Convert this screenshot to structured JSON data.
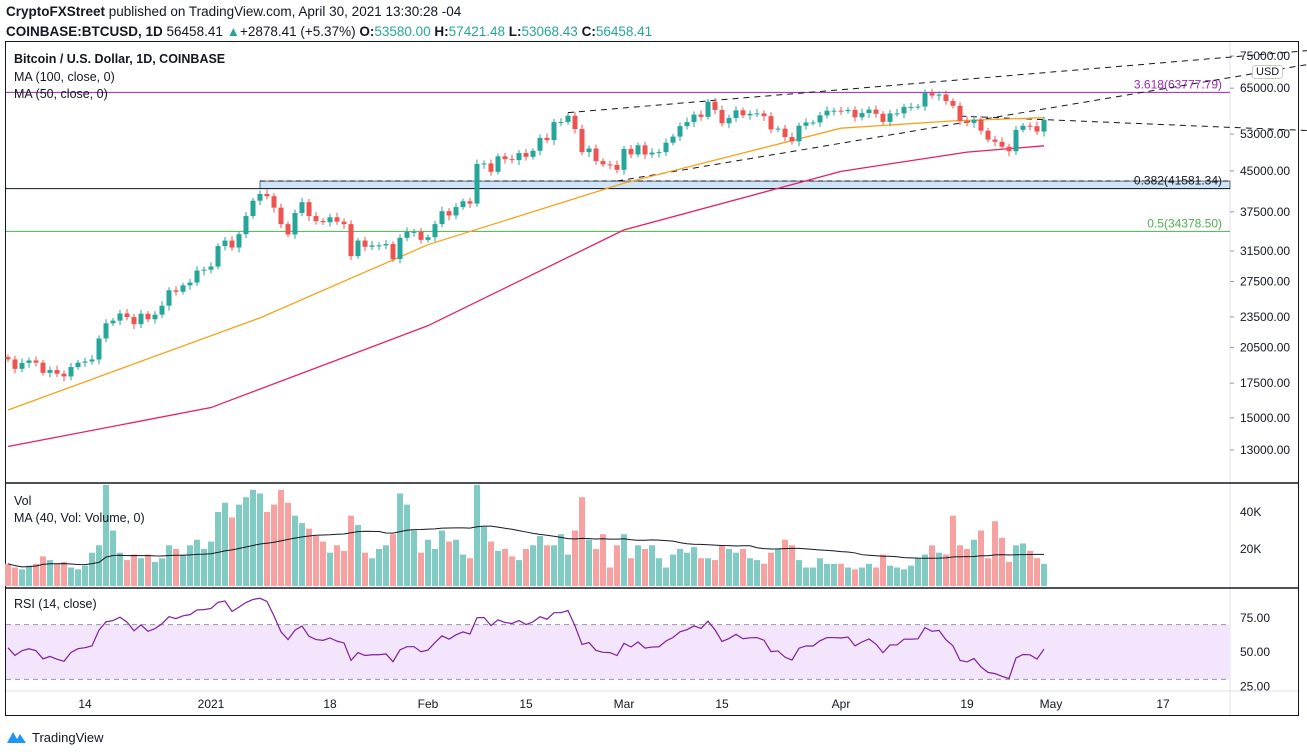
{
  "header": {
    "author": "CryptoFXStreet",
    "published": "published on TradingView.com, April 30, 2021 13:30:28 -04",
    "symbol": "COINBASE:BTCUSD, 1D",
    "last": "56458.41",
    "change": "+2878.41 (+5.37%)",
    "o_label": "O:",
    "o": "53580.00",
    "h_label": "H:",
    "h": "57421.48",
    "l_label": "L:",
    "l": "53068.43",
    "c_label": "C:",
    "c": "56458.41"
  },
  "legend": {
    "title": "Bitcoin / U.S. Dollar, 1D, COINBASE",
    "ma100": "MA (100, close, 0)",
    "ma50": "MA (50, close, 0)",
    "vol": "Vol",
    "vol_ma": "MA (40, Vol: Volume, 0)",
    "rsi": "RSI (14, close)",
    "currency": "USD"
  },
  "footer": {
    "brand": "TradingView"
  },
  "colors": {
    "up": "#26a69a",
    "down": "#ef5350",
    "ma50": "#f7a21b",
    "ma100": "#e91e63",
    "fib_3618": "#9c27b0",
    "fib_05": "#4caf50",
    "rsi": "#7e1fa0",
    "rsi_band": "#f3e5fb"
  },
  "chart_data": [
    {
      "type": "candlestick",
      "scale": "log",
      "start_date": "2020-12-03",
      "end_date": "2021-04-30",
      "price_ticks": [
        75000,
        65000,
        53000,
        45000,
        37500,
        31500,
        27500,
        23500,
        20500,
        17500,
        15000,
        13000
      ],
      "price_tick_labels": [
        "75000.00",
        "65000.00",
        "53000.00",
        "45000.00",
        "37500.00",
        "31500.00",
        "27500.00",
        "23500.00",
        "20500.00",
        "17500.00",
        "15000.00",
        "13000.00"
      ],
      "x_ticks": [
        {
          "date": "2020-12-14",
          "label": "14"
        },
        {
          "date": "2021-01-01",
          "label": "2021"
        },
        {
          "date": "2021-01-18",
          "label": "18"
        },
        {
          "date": "2021-02-01",
          "label": "Feb"
        },
        {
          "date": "2021-02-15",
          "label": "15"
        },
        {
          "date": "2021-03-01",
          "label": "Mar"
        },
        {
          "date": "2021-03-15",
          "label": "15"
        },
        {
          "date": "2021-04-01",
          "label": "Apr"
        },
        {
          "date": "2021-04-19",
          "label": "19"
        },
        {
          "date": "2021-05-01",
          "label": "May"
        },
        {
          "date": "2021-05-17",
          "label": "17"
        }
      ],
      "first_open": 19650,
      "close": [
        19450,
        18650,
        19150,
        19360,
        19170,
        18320,
        18550,
        18250,
        18030,
        18800,
        19170,
        19270,
        19440,
        21350,
        22840,
        23110,
        23860,
        23480,
        22750,
        23830,
        23250,
        23730,
        24700,
        26450,
        26280,
        27040,
        27370,
        28880,
        28990,
        29400,
        32200,
        33000,
        31990,
        33950,
        36800,
        39400,
        40600,
        40200,
        38200,
        35500,
        33900,
        37300,
        39150,
        36800,
        36000,
        35800,
        36600,
        35900,
        35500,
        30800,
        33000,
        32100,
        32300,
        32300,
        32500,
        30400,
        33400,
        34300,
        34300,
        33100,
        33500,
        35500,
        37600,
        36900,
        38300,
        39300,
        38900,
        46400,
        46500,
        44800,
        48000,
        47400,
        47200,
        48700,
        47900,
        49200,
        52100,
        51600,
        55900,
        55900,
        57500,
        54200,
        48900,
        49700,
        47000,
        46300,
        46200,
        45200,
        49600,
        48400,
        50400,
        48400,
        48800,
        48900,
        51000,
        52400,
        54900,
        55900,
        57800,
        57200,
        61200,
        59000,
        55600,
        56900,
        58900,
        57600,
        58000,
        58100,
        57400,
        54100,
        54300,
        52300,
        51300,
        55000,
        55800,
        55800,
        57600,
        58800,
        58800,
        58700,
        59000,
        57100,
        58200,
        59100,
        58000,
        55950,
        58100,
        58100,
        59800,
        59800,
        59900,
        63600,
        62900,
        63200,
        61400,
        60100,
        56200,
        55700,
        56500,
        53800,
        51700,
        51200,
        50100,
        49100,
        54000,
        55000,
        54900,
        53580,
        56458.41
      ],
      "ma50": [
        [
          "2020-12-03",
          15530
        ],
        [
          "2021-01-08",
          23400
        ],
        [
          "2021-02-01",
          32400
        ],
        [
          "2021-03-01",
          42600
        ],
        [
          "2021-04-01",
          54400
        ],
        [
          "2021-04-17",
          56200
        ],
        [
          "2021-04-30",
          57000
        ]
      ],
      "ma100": [
        [
          "2020-12-03",
          13200
        ],
        [
          "2021-01-01",
          15700
        ],
        [
          "2021-02-01",
          22600
        ],
        [
          "2021-03-01",
          34600
        ],
        [
          "2021-04-01",
          44900
        ],
        [
          "2021-04-19",
          48900
        ],
        [
          "2021-04-30",
          50300
        ]
      ],
      "fib_levels": [
        {
          "label": "3.618(63777.79)",
          "value": 63777.79
        },
        {
          "label": "0.382(41581.34)",
          "value": 41581.34
        },
        {
          "label": "0.5(34378.50)",
          "value": 34378.5
        }
      ],
      "trendlines": [
        [
          [
            "2021-02-21",
            58300
          ],
          [
            "2021-06-10",
            77500
          ]
        ],
        [
          [
            "2021-02-28",
            43000
          ],
          [
            "2021-06-10",
            73500
          ]
        ],
        [
          [
            "2021-04-18",
            57400
          ],
          [
            "2021-06-10",
            53600
          ]
        ]
      ],
      "zone": {
        "from_date": "2021-01-08",
        "low": 41581.34,
        "high": 43000
      }
    },
    {
      "type": "bar",
      "title": "Vol",
      "unit": "K",
      "y_ticks": [
        "40K",
        "20K"
      ],
      "values": [
        12,
        10,
        9,
        11,
        12,
        16,
        14,
        12,
        13,
        10,
        9,
        11,
        18,
        22,
        55,
        30,
        18,
        14,
        17,
        15,
        17,
        13,
        15,
        22,
        20,
        17,
        22,
        25,
        20,
        24,
        40,
        45,
        37,
        44,
        48,
        52,
        50,
        40,
        44,
        52,
        45,
        38,
        34,
        31,
        27,
        24,
        18,
        22,
        19,
        38,
        33,
        18,
        15,
        20,
        22,
        28,
        50,
        44,
        30,
        18,
        25,
        20,
        30,
        24,
        25,
        17,
        15,
        56,
        32,
        24,
        19,
        20,
        16,
        14,
        20,
        22,
        27,
        22,
        22,
        28,
        17,
        30,
        48,
        25,
        20,
        28,
        10,
        22,
        28,
        15,
        22,
        20,
        22,
        15,
        10,
        17,
        20,
        18,
        21,
        15,
        15,
        14,
        22,
        20,
        18,
        20,
        15,
        14,
        12,
        18,
        20,
        25,
        22,
        14,
        10,
        10,
        15,
        12,
        12,
        12,
        10,
        9,
        10,
        12,
        10,
        17,
        11,
        10,
        9,
        11,
        15,
        17,
        22,
        18,
        17,
        38,
        22,
        20,
        25,
        30,
        15,
        35,
        26,
        13,
        22,
        23,
        19,
        15,
        12
      ]
    },
    {
      "type": "line",
      "title": "RSI (14, close)",
      "y_ticks": [
        "75.00",
        "50.00",
        "25.00"
      ],
      "band": [
        30,
        70
      ]
    }
  ]
}
